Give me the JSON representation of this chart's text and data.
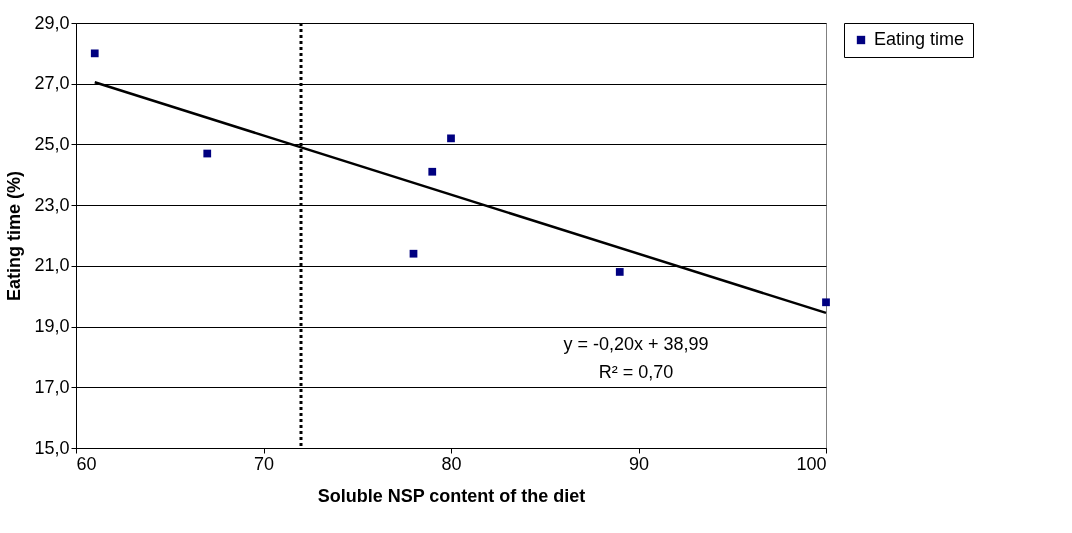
{
  "chart_data": {
    "type": "scatter",
    "xlabel": "Soluble NSP content of the diet",
    "ylabel": "Eating time (%)",
    "xlim": [
      60,
      100
    ],
    "xticks": [
      60,
      70,
      80,
      90,
      100
    ],
    "ylim": [
      15,
      29
    ],
    "yticks": [
      {
        "value": 15,
        "label": "15,0"
      },
      {
        "value": 17,
        "label": "17,0"
      },
      {
        "value": 19,
        "label": "19,0"
      },
      {
        "value": 21,
        "label": "21,0"
      },
      {
        "value": 23,
        "label": "23,0"
      },
      {
        "value": 25,
        "label": "25,0"
      },
      {
        "value": 27,
        "label": "27,0"
      },
      {
        "value": 29,
        "label": "29,0"
      }
    ],
    "grid": "y",
    "legend": "right",
    "series": [
      {
        "name": "Eating time",
        "marker": "square",
        "color": "#000080",
        "x": [
          61,
          67,
          78,
          79,
          80,
          89,
          100
        ],
        "values": [
          28.0,
          24.7,
          21.4,
          24.1,
          25.2,
          20.8,
          19.8
        ]
      },
      {
        "type": "line",
        "marker": "none",
        "color": "#000000",
        "x": [
          61,
          100
        ],
        "values": [
          27.05,
          19.45
        ]
      }
    ],
    "ref_lines": [
      {
        "axis": "x",
        "value": 72,
        "line_style": "dotted",
        "color": "#000000"
      }
    ],
    "annotations": [
      "y = -0,20x + 38,99",
      "R² = 0,70"
    ]
  }
}
